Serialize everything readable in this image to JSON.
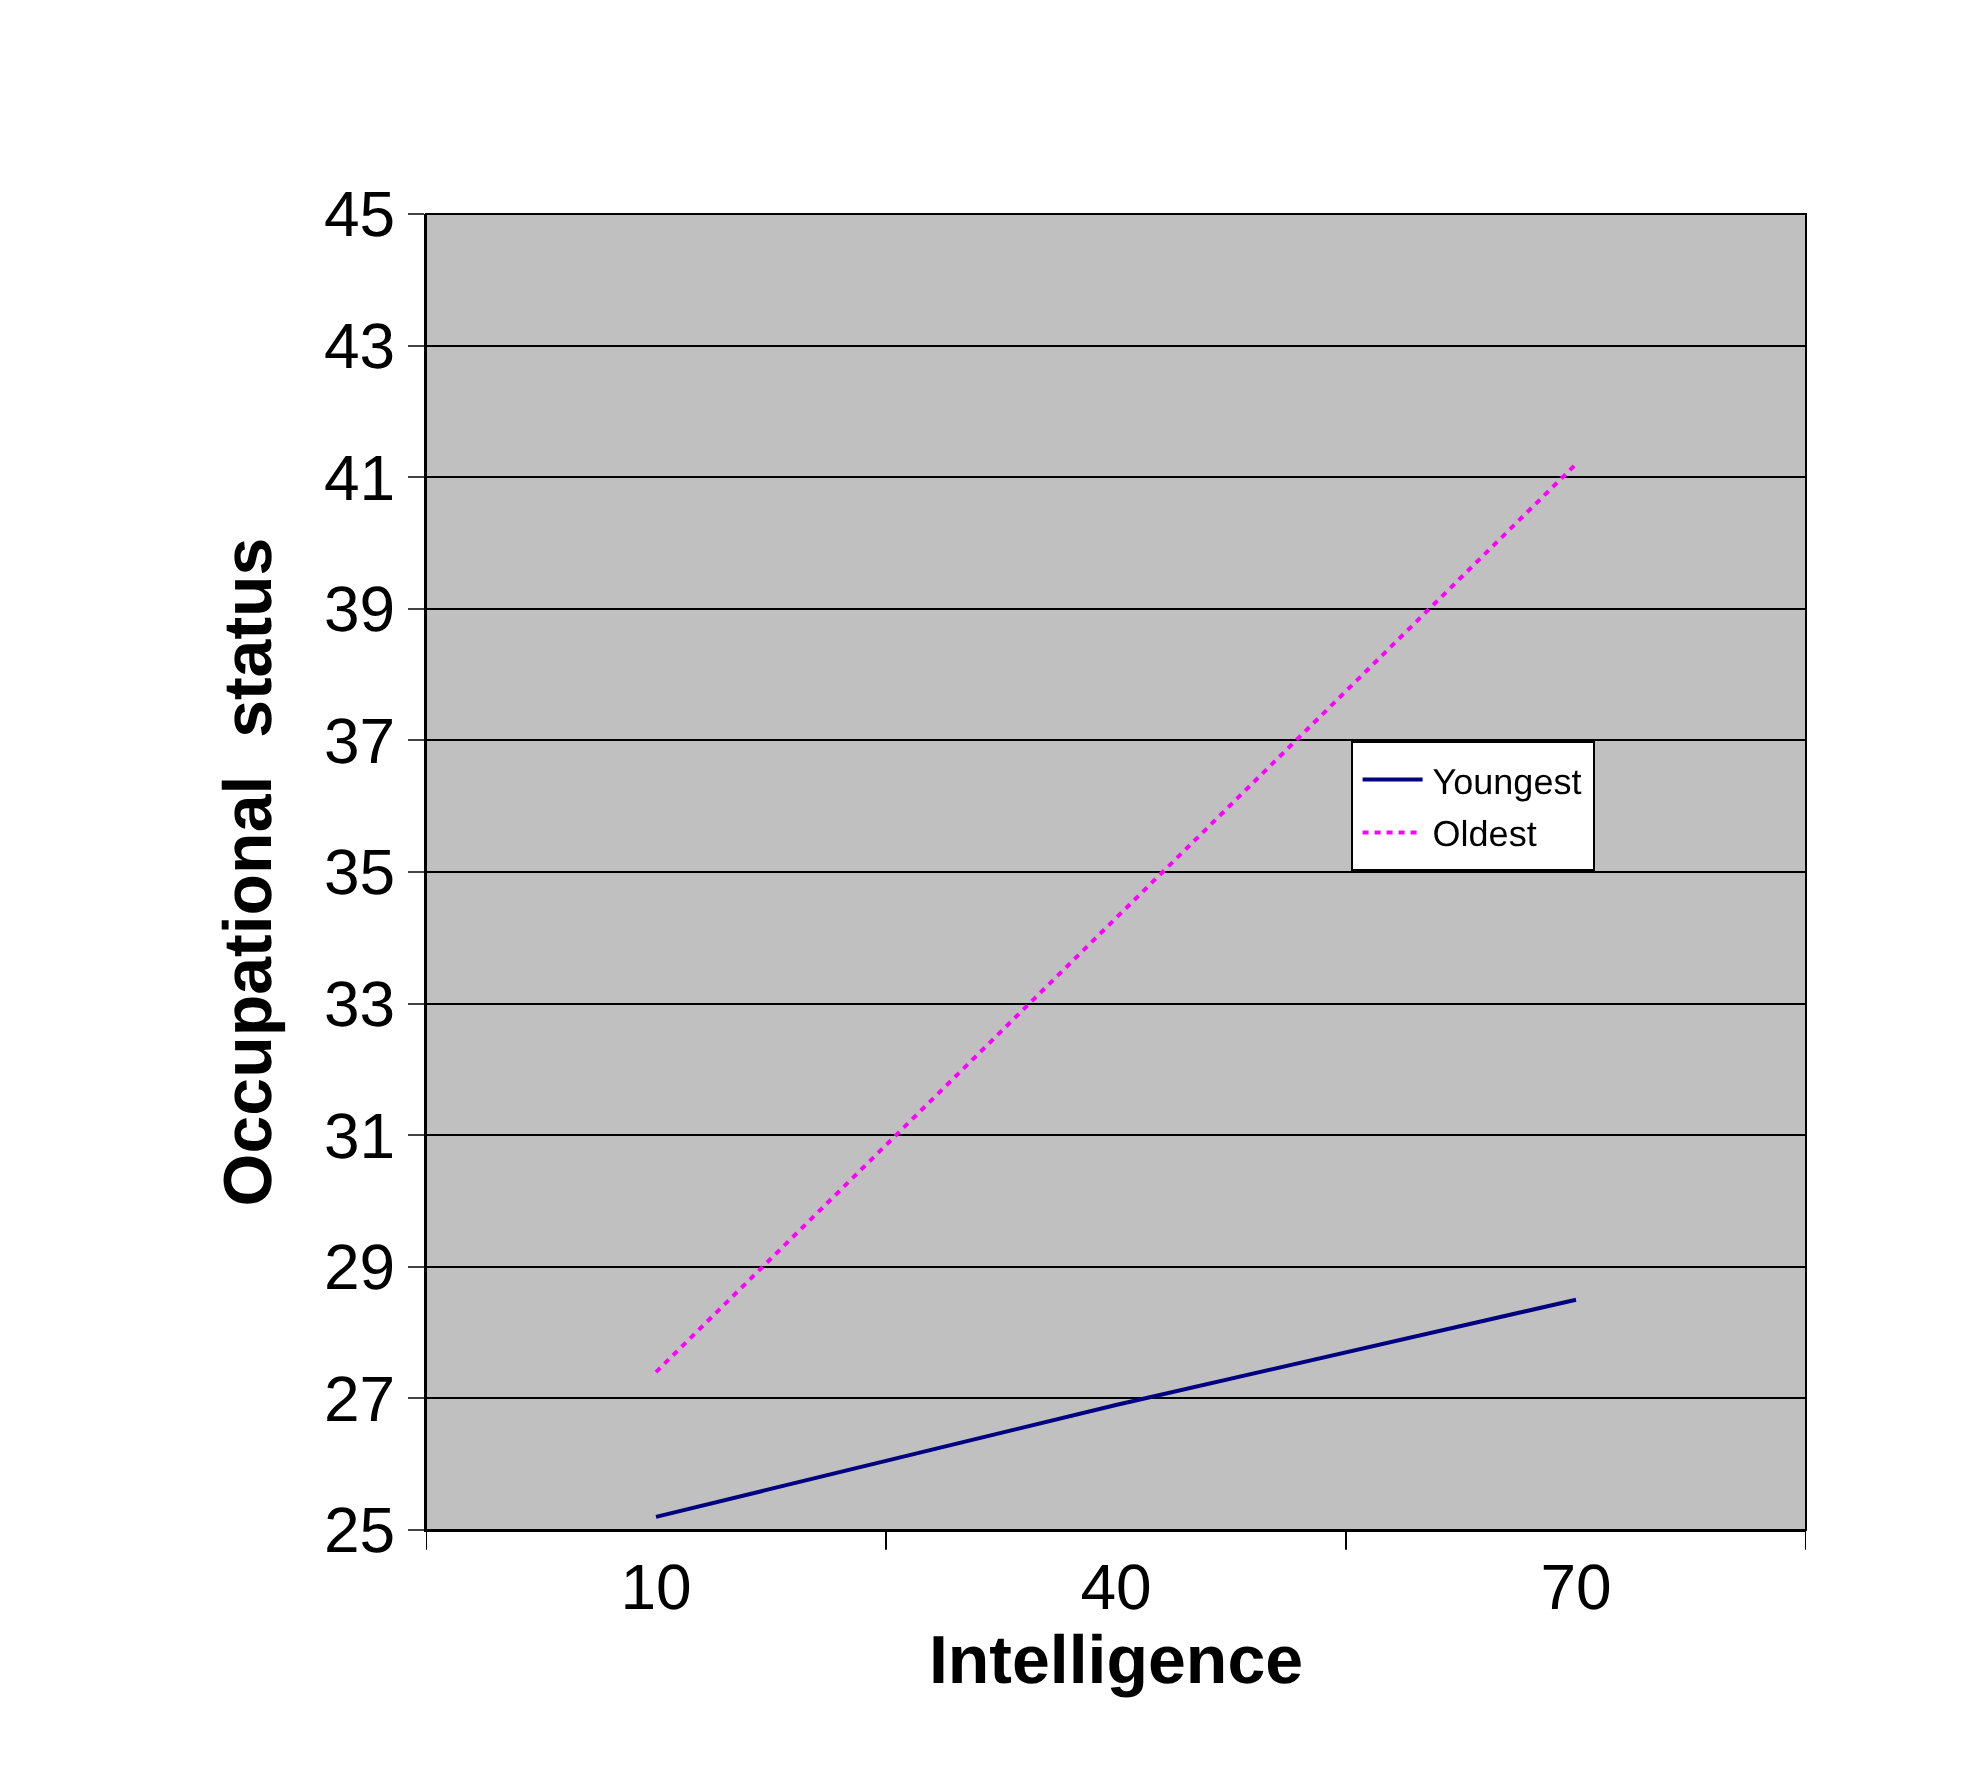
{
  "chart_data": {
    "type": "line",
    "xlabel": "Intelligence",
    "ylabel": "Occupational  status",
    "categories": [
      "10",
      "40",
      "70"
    ],
    "series": [
      {
        "name": "Youngest",
        "color": "#000080",
        "line_style": "solid",
        "values": [
          25.2,
          26.9,
          28.5
        ]
      },
      {
        "name": "Oldest",
        "color": "#ff00ff",
        "line_style": "dotted",
        "values": [
          27.4,
          34.3,
          41.2
        ]
      }
    ],
    "ylim": [
      25,
      45
    ],
    "yticks": [
      25,
      27,
      29,
      31,
      33,
      35,
      37,
      39,
      41,
      43,
      45
    ],
    "grid": "y",
    "legend": "right",
    "marker": "none"
  }
}
